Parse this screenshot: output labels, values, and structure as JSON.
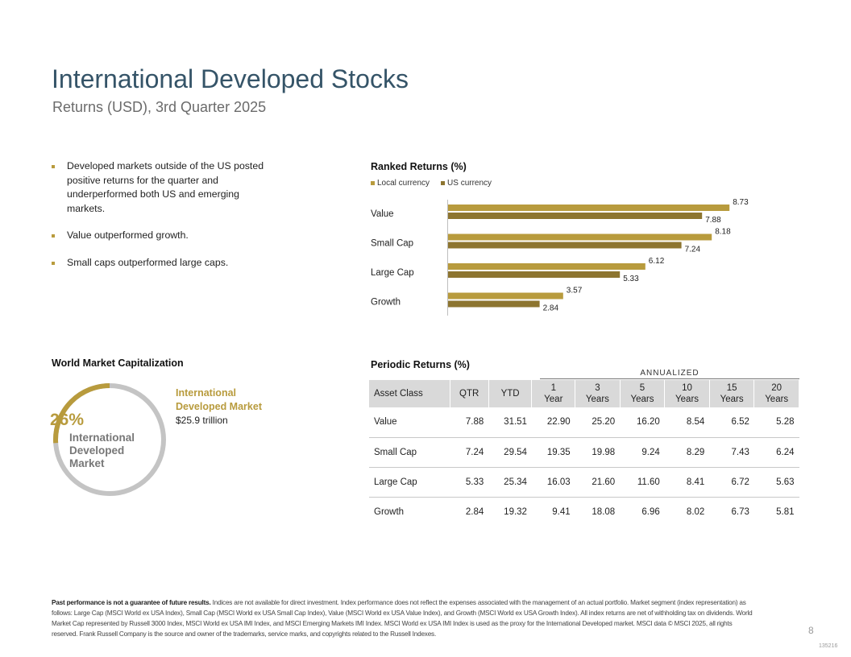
{
  "header": {
    "title": "International Developed Stocks",
    "subtitle": "Returns (USD), 3rd Quarter 2025"
  },
  "bullets": [
    "Developed markets outside of the US posted positive returns for the quarter and underperformed both US and emerging markets.",
    "Value outperformed growth.",
    "Small caps outperformed large caps."
  ],
  "ranked": {
    "heading": "Ranked Returns (%)",
    "legend_local": "Local currency",
    "legend_us": "US currency"
  },
  "colors": {
    "title": "#355468",
    "gold": "#b89b3d",
    "brown": "#8d7530",
    "ring_gray": "#c4c4c4",
    "header_gray": "#d9d9d9"
  },
  "chart_data": {
    "type": "bar",
    "orientation": "horizontal",
    "title": "Ranked Returns (%)",
    "categories": [
      "Value",
      "Small Cap",
      "Large Cap",
      "Growth"
    ],
    "series": [
      {
        "name": "Local currency",
        "values": [
          8.73,
          8.18,
          6.12,
          3.57
        ]
      },
      {
        "name": "US currency",
        "values": [
          7.88,
          7.24,
          5.33,
          2.84
        ]
      }
    ],
    "xlim": [
      0,
      10
    ],
    "grid": false,
    "legend": "top-left"
  },
  "world_cap": {
    "heading": "World Market Capitalization",
    "percent": "26%",
    "percent_value": 26,
    "center_label": "International Developed Market",
    "side_label": "International Developed Market",
    "side_value": "$25.9 trillion"
  },
  "periodic": {
    "heading": "Periodic Returns (%)",
    "annualized_label": "ANNUALIZED",
    "columns": [
      [
        "Asset Class"
      ],
      [
        "QTR"
      ],
      [
        "YTD"
      ],
      [
        "1",
        "Year"
      ],
      [
        "3",
        "Years"
      ],
      [
        "5",
        "Years"
      ],
      [
        "10",
        "Years"
      ],
      [
        "15",
        "Years"
      ],
      [
        "20",
        "Years"
      ]
    ],
    "rows": [
      [
        "Value",
        "7.88",
        "31.51",
        "22.90",
        "25.20",
        "16.20",
        "8.54",
        "6.52",
        "5.28"
      ],
      [
        "Small Cap",
        "7.24",
        "29.54",
        "19.35",
        "19.98",
        "9.24",
        "8.29",
        "7.43",
        "6.24"
      ],
      [
        "Large Cap",
        "5.33",
        "25.34",
        "16.03",
        "21.60",
        "11.60",
        "8.41",
        "6.72",
        "5.63"
      ],
      [
        "Growth",
        "2.84",
        "19.32",
        "9.41",
        "18.08",
        "6.96",
        "8.02",
        "6.73",
        "5.81"
      ]
    ]
  },
  "footnote": {
    "bold": "Past performance is not a guarantee of future results.",
    "text": " Indices are not available for direct investment. Index performance does not reflect the expenses associated with the management of an actual portfolio. Market segment (index representation) as follows: Large Cap (MSCI World ex USA Index), Small Cap (MSCI World ex USA Small Cap Index), Value (MSCI World ex USA Value Index), and Growth (MSCI World ex USA Growth Index). All index returns are net of withholding tax on dividends. World Market Cap represented by Russell 3000 Index, MSCI World ex USA IMI Index, and MSCI Emerging Markets IMI Index. MSCI World ex USA IMI Index is used as the proxy for the International Developed market. MSCI data © MSCI 2025, all rights reserved. Frank Russell Company is the source and owner of the trademarks, service marks, and copyrights related to the Russell Indexes."
  },
  "page_number": "8",
  "doc_code": "135216"
}
